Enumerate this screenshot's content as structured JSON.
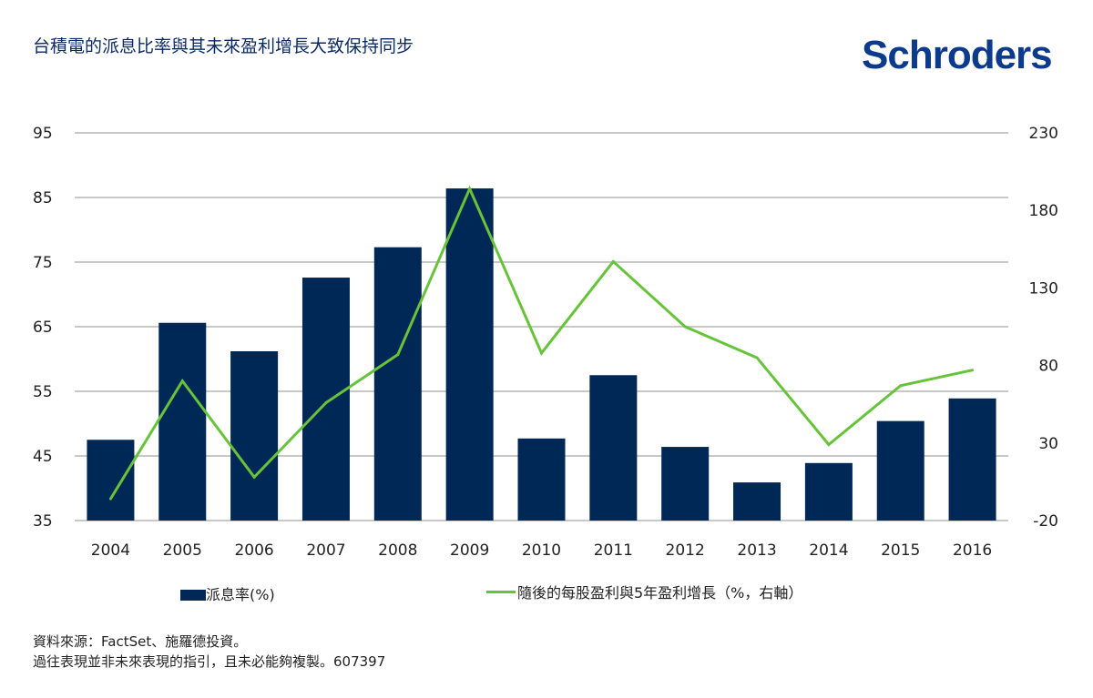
{
  "title": "台積電的派息比率與其未來盈利增長大致保持同步",
  "logo": "Schroders",
  "chart_data": {
    "type": "bar+line",
    "categories": [
      "2004",
      "2005",
      "2006",
      "2007",
      "2008",
      "2009",
      "2010",
      "2011",
      "2012",
      "2013",
      "2014",
      "2015",
      "2016"
    ],
    "series": [
      {
        "name": "派息率(%)",
        "type": "bar",
        "axis": "left",
        "color": "#002856",
        "values": [
          47.5,
          65.6,
          61.2,
          72.6,
          77.3,
          86.4,
          47.7,
          57.5,
          46.4,
          40.9,
          43.9,
          50.4,
          53.9
        ]
      },
      {
        "name": "隨後的每股盈利與5年盈利增長（%，右軸）",
        "type": "line",
        "axis": "right",
        "color": "#66c33a",
        "values": [
          -6,
          70,
          8,
          56,
          87,
          194,
          88,
          147,
          105,
          85,
          29,
          67,
          77
        ]
      }
    ],
    "left_axis": {
      "ylim": [
        35,
        95
      ],
      "ticks": [
        "35",
        "45",
        "55",
        "65",
        "75",
        "85",
        "95"
      ]
    },
    "right_axis": {
      "ylim": [
        -20,
        230
      ],
      "ticks": [
        "-20",
        "30",
        "80",
        "130",
        "180",
        "230"
      ]
    },
    "grid": true,
    "legend": "bottom"
  },
  "legend": {
    "bar_label": "派息率(%)",
    "line_label": "隨後的每股盈利與5年盈利增長（%，右軸）"
  },
  "source": {
    "line1": "資料來源：FactSet、施羅德投資。",
    "line2": "過往表現並非未來表現的指引，且未必能夠複製。607397"
  }
}
